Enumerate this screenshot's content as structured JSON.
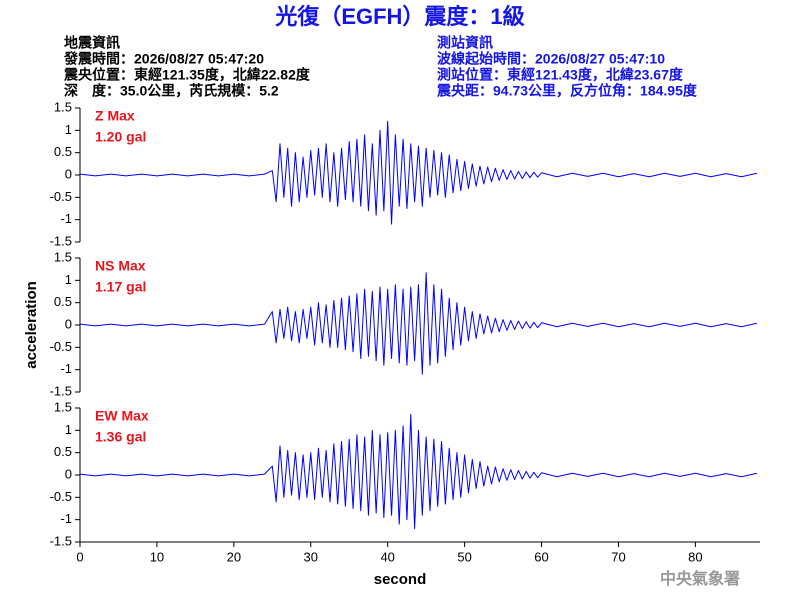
{
  "header": {
    "title": "光復（EGFH）震度：1級",
    "left": [
      "地震資訊",
      "發震時間：2026/08/27 05:47:20",
      "震央位置：東經121.35度，北緯22.82度",
      "深　度：35.0公里，芮氏規模：5.2"
    ],
    "right": [
      "測站資訊",
      "波線起始時間：2026/08/27 05:47:10",
      "測站位置：東經121.43度，北緯23.67度",
      "震央距：94.73公里，反方位角：184.95度"
    ]
  },
  "footer": "中央氣象署",
  "chart_data": [
    {
      "type": "line",
      "title": "Z Max",
      "subtitle": "1.20 gal",
      "color": "#0000ff",
      "label_color": "#e8141e",
      "xlim": [
        0,
        88.4
      ],
      "ylim": [
        -1.5,
        1.5
      ],
      "yticks": [
        -1.5,
        -1,
        -0.5,
        0,
        0.5,
        1,
        1.5
      ],
      "x": [
        0,
        2,
        4,
        6,
        8,
        10,
        12,
        14,
        16,
        18,
        20,
        22,
        24,
        25,
        25.5,
        26,
        26.5,
        27,
        27.5,
        28,
        28.5,
        29,
        29.5,
        30,
        30.5,
        31,
        31.5,
        32,
        32.5,
        33,
        33.5,
        34,
        34.5,
        35,
        35.5,
        36,
        36.5,
        37,
        37.5,
        38,
        38.5,
        39,
        39.5,
        40,
        40.5,
        41,
        41.5,
        42,
        42.5,
        43,
        43.5,
        44,
        44.5,
        45,
        45.5,
        46,
        46.5,
        47,
        47.5,
        48,
        48.5,
        49,
        49.5,
        50,
        50.5,
        51,
        51.5,
        52,
        52.5,
        53,
        53.5,
        54,
        54.5,
        55,
        55.5,
        56,
        56.5,
        57,
        57.5,
        58,
        58.5,
        59,
        59.5,
        60,
        62,
        64,
        66,
        68,
        70,
        72,
        74,
        76,
        78,
        80,
        82,
        84,
        86,
        88
      ],
      "values": [
        0.02,
        -0.02,
        0.02,
        -0.02,
        0.02,
        -0.02,
        0.02,
        -0.02,
        0.02,
        -0.02,
        0.02,
        -0.02,
        0.02,
        0.1,
        -0.6,
        0.7,
        -0.5,
        0.6,
        -0.7,
        0.5,
        -0.6,
        0.4,
        -0.5,
        0.55,
        -0.45,
        0.6,
        -0.5,
        0.7,
        -0.6,
        0.5,
        -0.7,
        0.6,
        -0.55,
        0.75,
        -0.6,
        0.8,
        -0.7,
        0.9,
        -0.8,
        0.7,
        -0.9,
        1.0,
        -0.8,
        1.2,
        -1.1,
        0.9,
        -0.7,
        0.8,
        -0.75,
        0.7,
        -0.6,
        0.65,
        -0.7,
        0.6,
        -0.5,
        0.55,
        -0.45,
        0.5,
        -0.5,
        0.45,
        -0.4,
        0.35,
        -0.35,
        0.3,
        -0.3,
        0.25,
        -0.25,
        0.2,
        -0.2,
        0.18,
        -0.15,
        0.15,
        -0.12,
        0.12,
        -0.1,
        0.1,
        -0.09,
        0.08,
        -0.08,
        0.07,
        -0.06,
        0.06,
        -0.05,
        0.05,
        -0.04,
        0.04,
        -0.03,
        0.04,
        -0.04,
        0.03,
        -0.04,
        0.04,
        -0.03,
        0.04,
        -0.04,
        0.03,
        -0.04,
        0.04
      ]
    },
    {
      "type": "line",
      "title": "NS Max",
      "subtitle": "1.17 gal",
      "color": "#0000ff",
      "label_color": "#e8141e",
      "ylabel": "acceleration",
      "xlim": [
        0,
        88.4
      ],
      "ylim": [
        -1.5,
        1.5
      ],
      "yticks": [
        -1.5,
        -1,
        -0.5,
        0,
        0.5,
        1,
        1.5
      ],
      "x": [
        0,
        2,
        4,
        6,
        8,
        10,
        12,
        14,
        16,
        18,
        20,
        22,
        24,
        25,
        25.5,
        26,
        26.5,
        27,
        27.5,
        28,
        28.5,
        29,
        29.5,
        30,
        30.5,
        31,
        31.5,
        32,
        32.5,
        33,
        33.5,
        34,
        34.5,
        35,
        35.5,
        36,
        36.5,
        37,
        37.5,
        38,
        38.5,
        39,
        39.5,
        40,
        40.5,
        41,
        41.5,
        42,
        42.5,
        43,
        43.5,
        44,
        44.5,
        45,
        45.5,
        46,
        46.5,
        47,
        47.5,
        48,
        48.5,
        49,
        49.5,
        50,
        50.5,
        51,
        51.5,
        52,
        52.5,
        53,
        53.5,
        54,
        54.5,
        55,
        55.5,
        56,
        56.5,
        57,
        57.5,
        58,
        58.5,
        59,
        59.5,
        60,
        62,
        64,
        66,
        68,
        70,
        72,
        74,
        76,
        78,
        80,
        82,
        84,
        86,
        88
      ],
      "values": [
        0.02,
        -0.02,
        0.02,
        -0.02,
        0.02,
        -0.02,
        0.02,
        -0.02,
        0.02,
        -0.02,
        0.02,
        -0.02,
        0.02,
        0.3,
        -0.4,
        0.35,
        -0.3,
        0.4,
        -0.35,
        0.3,
        -0.4,
        0.35,
        -0.3,
        0.4,
        -0.45,
        0.5,
        -0.4,
        0.45,
        -0.5,
        0.55,
        -0.5,
        0.6,
        -0.55,
        0.65,
        -0.6,
        0.7,
        -0.75,
        0.8,
        -0.7,
        0.75,
        -0.8,
        0.85,
        -0.9,
        0.8,
        -0.75,
        0.9,
        -0.85,
        0.8,
        -0.9,
        0.85,
        -0.8,
        0.9,
        -1.1,
        1.17,
        -0.9,
        0.9,
        -0.85,
        0.8,
        -0.7,
        0.6,
        -0.55,
        0.5,
        -0.45,
        0.4,
        -0.35,
        0.3,
        -0.3,
        0.25,
        -0.2,
        0.2,
        -0.18,
        0.15,
        -0.15,
        0.12,
        -0.12,
        0.1,
        -0.1,
        0.09,
        -0.08,
        0.07,
        -0.07,
        0.06,
        -0.06,
        0.05,
        -0.04,
        0.04,
        -0.03,
        0.04,
        -0.04,
        0.03,
        -0.04,
        0.04,
        -0.03,
        0.04,
        -0.04,
        0.03,
        -0.04,
        0.04
      ]
    },
    {
      "type": "line",
      "title": "EW Max",
      "subtitle": "1.36 gal",
      "color": "#0000ff",
      "label_color": "#e8141e",
      "xlabel": "second",
      "xlim": [
        0,
        88.4
      ],
      "ylim": [
        -1.5,
        1.5
      ],
      "yticks": [
        -1.5,
        -1,
        -0.5,
        0,
        0.5,
        1,
        1.5
      ],
      "xticks": [
        0,
        10,
        20,
        30,
        40,
        50,
        60,
        70,
        80
      ],
      "x": [
        0,
        2,
        4,
        6,
        8,
        10,
        12,
        14,
        16,
        18,
        20,
        22,
        24,
        25,
        25.5,
        26,
        26.5,
        27,
        27.5,
        28,
        28.5,
        29,
        29.5,
        30,
        30.5,
        31,
        31.5,
        32,
        32.5,
        33,
        33.5,
        34,
        34.5,
        35,
        35.5,
        36,
        36.5,
        37,
        37.5,
        38,
        38.5,
        39,
        39.5,
        40,
        40.5,
        41,
        41.5,
        42,
        42.5,
        43,
        43.5,
        44,
        44.5,
        45,
        45.5,
        46,
        46.5,
        47,
        47.5,
        48,
        48.5,
        49,
        49.5,
        50,
        50.5,
        51,
        51.5,
        52,
        52.5,
        53,
        53.5,
        54,
        54.5,
        55,
        55.5,
        56,
        56.5,
        57,
        57.5,
        58,
        58.5,
        59,
        59.5,
        60,
        62,
        64,
        66,
        68,
        70,
        72,
        74,
        76,
        78,
        80,
        82,
        84,
        86,
        88
      ],
      "values": [
        0.02,
        -0.02,
        0.02,
        -0.02,
        0.02,
        -0.02,
        0.02,
        -0.02,
        0.02,
        -0.02,
        0.02,
        -0.02,
        0.02,
        0.2,
        -0.6,
        0.65,
        -0.5,
        0.55,
        -0.45,
        0.5,
        -0.55,
        0.45,
        -0.5,
        0.5,
        -0.55,
        0.6,
        -0.5,
        0.55,
        -0.6,
        0.7,
        -0.65,
        0.75,
        -0.7,
        0.8,
        -0.75,
        0.9,
        -0.8,
        0.85,
        -0.9,
        1.0,
        -0.85,
        0.9,
        -0.95,
        0.95,
        -0.9,
        1.0,
        -1.1,
        1.1,
        -1.0,
        1.36,
        -1.2,
        1.0,
        -0.9,
        0.85,
        -0.8,
        0.8,
        -0.7,
        0.75,
        -0.65,
        0.6,
        -0.55,
        0.5,
        -0.5,
        0.45,
        -0.4,
        0.35,
        -0.3,
        0.3,
        -0.25,
        0.2,
        -0.2,
        0.18,
        -0.15,
        0.14,
        -0.12,
        0.12,
        -0.1,
        0.1,
        -0.09,
        0.08,
        -0.07,
        0.06,
        -0.06,
        0.05,
        -0.04,
        0.04,
        -0.03,
        0.04,
        -0.04,
        0.03,
        -0.04,
        0.04,
        -0.03,
        0.04,
        -0.04,
        0.03,
        -0.04,
        0.04
      ]
    }
  ]
}
